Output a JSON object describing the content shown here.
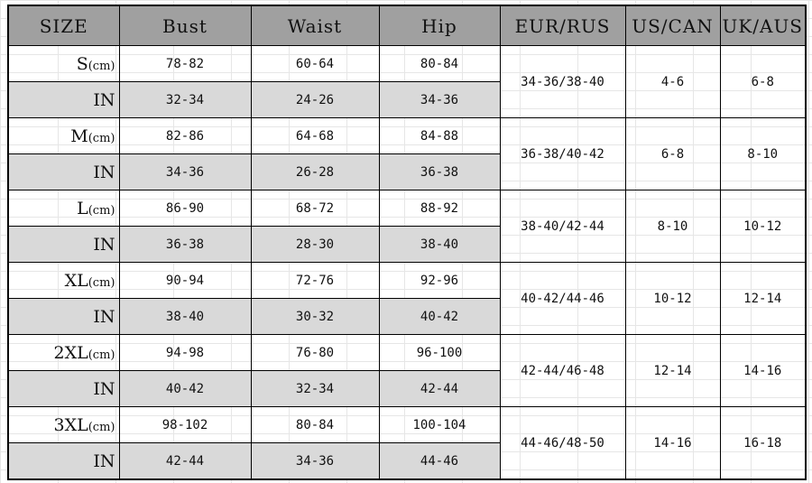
{
  "header": [
    "SIZE",
    "Bust",
    "Waist",
    "Hip",
    "EUR/RUS",
    "US/CAN",
    "UK/AUS"
  ],
  "colors": {
    "header_bg": "#a0a0a0",
    "inch_row_bg": "#d9d9d9"
  },
  "sizes": [
    {
      "size": "S",
      "unit": "(cm)",
      "cm": [
        "78-82",
        "60-64",
        "80-84"
      ],
      "in_label": "IN",
      "in": [
        "32-34",
        "24-26",
        "34-36"
      ],
      "eur": "34-36/38-40",
      "us": "4-6",
      "uk": "6-8"
    },
    {
      "size": "M",
      "unit": "(cm)",
      "cm": [
        "82-86",
        "64-68",
        "84-88"
      ],
      "in_label": "IN",
      "in": [
        "34-36",
        "26-28",
        "36-38"
      ],
      "eur": "36-38/40-42",
      "us": "6-8",
      "uk": "8-10"
    },
    {
      "size": "L",
      "unit": "(cm)",
      "cm": [
        "86-90",
        "68-72",
        "88-92"
      ],
      "in_label": "IN",
      "in": [
        "36-38",
        "28-30",
        "38-40"
      ],
      "eur": "38-40/42-44",
      "us": "8-10",
      "uk": "10-12"
    },
    {
      "size": "XL",
      "unit": "(cm)",
      "cm": [
        "90-94",
        "72-76",
        "92-96"
      ],
      "in_label": "IN",
      "in": [
        "38-40",
        "30-32",
        "40-42"
      ],
      "eur": "40-42/44-46",
      "us": "10-12",
      "uk": "12-14"
    },
    {
      "size": "2XL",
      "unit": "(cm)",
      "cm": [
        "94-98",
        "76-80",
        "96-100"
      ],
      "in_label": "IN",
      "in": [
        "40-42",
        "32-34",
        "42-44"
      ],
      "eur": "42-44/46-48",
      "us": "12-14",
      "uk": "14-16"
    },
    {
      "size": "3XL",
      "unit": "(cm)",
      "cm": [
        "98-102",
        "80-84",
        "100-104"
      ],
      "in_label": "IN",
      "in": [
        "42-44",
        "34-36",
        "44-46"
      ],
      "eur": "44-46/48-50",
      "us": "14-16",
      "uk": "16-18"
    }
  ]
}
